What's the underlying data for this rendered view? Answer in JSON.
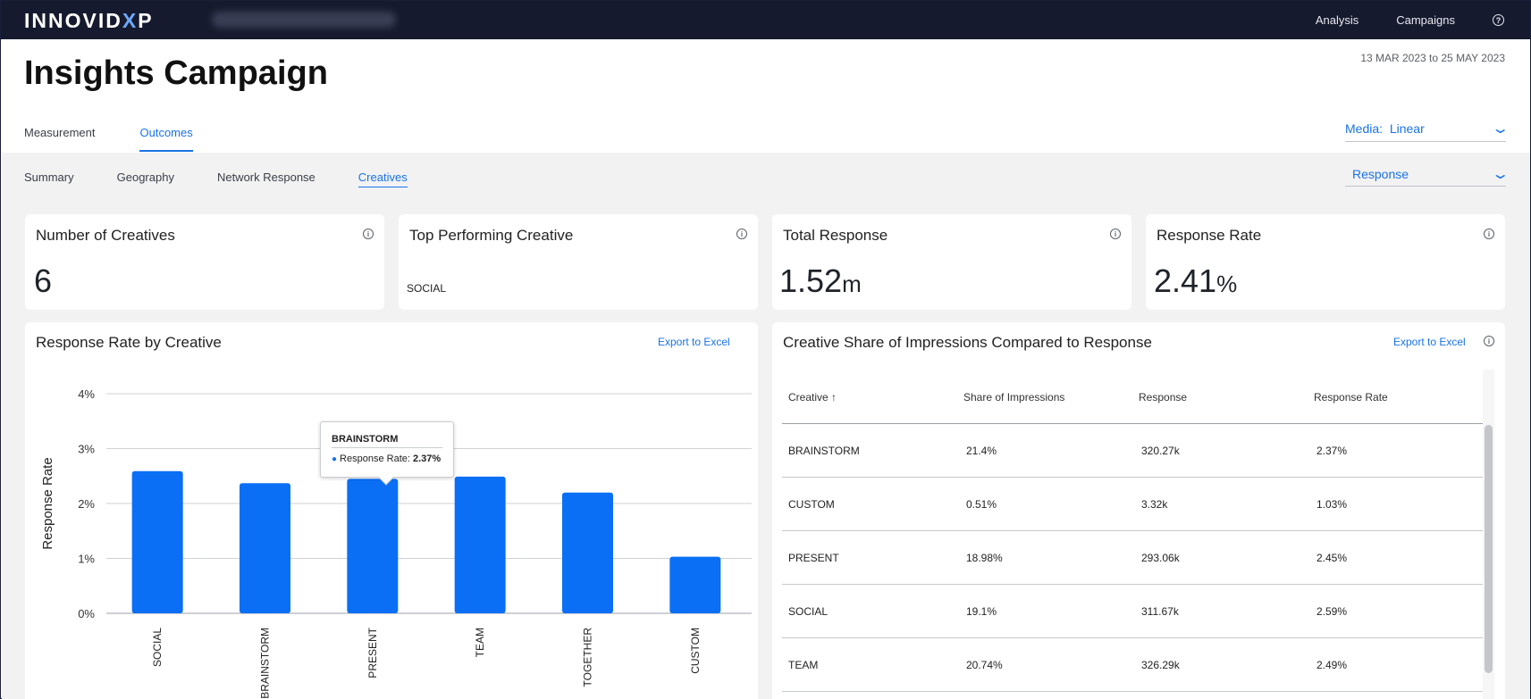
{
  "header": {
    "logo_main": "INNOVID",
    "logo_x": "X",
    "logo_p": "P",
    "nav": [
      "Analysis",
      "Campaigns"
    ],
    "help_icon": "?"
  },
  "page": {
    "title": "Insights Campaign",
    "date_range": "13 MAR 2023 to 25 MAY 2023"
  },
  "tabs_primary": [
    {
      "label": "Measurement",
      "active": false
    },
    {
      "label": "Outcomes",
      "active": true
    }
  ],
  "tabs_secondary": [
    {
      "label": "Summary",
      "active": false
    },
    {
      "label": "Geography",
      "active": false
    },
    {
      "label": "Network Response",
      "active": false
    },
    {
      "label": "Creatives",
      "active": true
    }
  ],
  "media_dropdown": {
    "label": "Media:",
    "value": "Linear"
  },
  "metric_dropdown": {
    "value": "Response"
  },
  "kpis": [
    {
      "title": "Number of Creatives",
      "value": "6",
      "unit": ""
    },
    {
      "title": "Top Performing Creative",
      "text": "SOCIAL"
    },
    {
      "title": "Total Response",
      "value": "1.52",
      "unit": "m"
    },
    {
      "title": "Response Rate",
      "value": "2.41",
      "unit": "%"
    }
  ],
  "chart_card": {
    "title": "Response Rate by Creative",
    "export_label": "Export to Excel"
  },
  "chart_data": {
    "type": "bar",
    "categories": [
      "SOCIAL",
      "BRAINSTORM",
      "PRESENT",
      "TEAM",
      "TOGETHER",
      "CUSTOM"
    ],
    "values": [
      2.59,
      2.37,
      2.45,
      2.49,
      2.2,
      1.03
    ],
    "ylabel": "Response Rate",
    "ylim": [
      0,
      4
    ],
    "yticks": [
      "0%",
      "1%",
      "2%",
      "3%",
      "4%"
    ],
    "ytick_values": [
      0,
      1,
      2,
      3,
      4
    ],
    "color": "#0a6ff5",
    "grid": true
  },
  "tooltip": {
    "title": "BRAINSTORM",
    "label": "Response Rate:",
    "value": "2.37%"
  },
  "table_card": {
    "title": "Creative Share of Impressions Compared to Response",
    "export_label": "Export to Excel",
    "columns": [
      "Creative ↑",
      "Share of Impressions",
      "Response",
      "Response Rate"
    ],
    "rows": [
      [
        "BRAINSTORM",
        "21.4%",
        "320.27k",
        "2.37%"
      ],
      [
        "CUSTOM",
        "0.51%",
        "3.32k",
        "1.03%"
      ],
      [
        "PRESENT",
        "18.98%",
        "293.06k",
        "2.45%"
      ],
      [
        "SOCIAL",
        "19.1%",
        "311.67k",
        "2.59%"
      ],
      [
        "TEAM",
        "20.74%",
        "326.29k",
        "2.49%"
      ]
    ]
  }
}
